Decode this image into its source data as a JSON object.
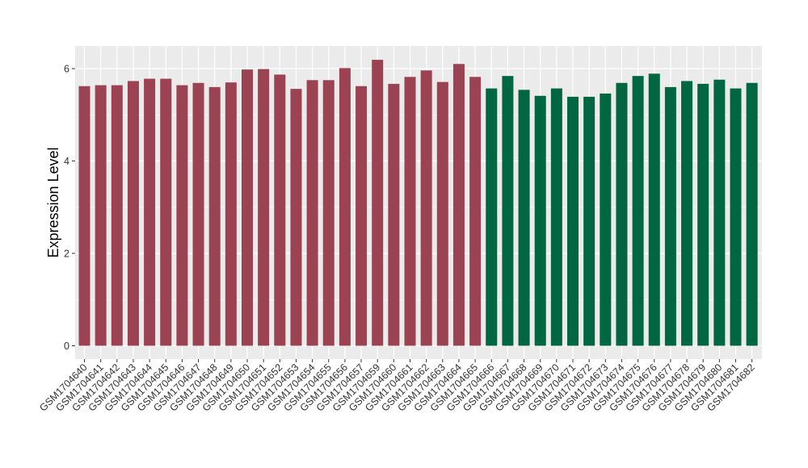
{
  "chart_data": {
    "type": "bar",
    "xlabel": "",
    "ylabel": "Expression Level",
    "ylim": [
      0,
      6.5
    ],
    "yticks": [
      0,
      2,
      4,
      6
    ],
    "grid": true,
    "background": "#ebebeb",
    "gridline_color": "#ffffff",
    "categories": [
      "GSM1704640",
      "GSM1704641",
      "GSM1704642",
      "GSM1704643",
      "GSM1704644",
      "GSM1704645",
      "GSM1704646",
      "GSM1704647",
      "GSM1704648",
      "GSM1704649",
      "GSM1704650",
      "GSM1704651",
      "GSM1704652",
      "GSM1704653",
      "GSM1704654",
      "GSM1704655",
      "GSM1704656",
      "GSM1704657",
      "GSM1704659",
      "GSM1704660",
      "GSM1704661",
      "GSM1704662",
      "GSM1704663",
      "GSM1704664",
      "GSM1704665",
      "GSM1704666",
      "GSM1704667",
      "GSM1704668",
      "GSM1704669",
      "GSM1704670",
      "GSM1704671",
      "GSM1704672",
      "GSM1704673",
      "GSM1704674",
      "GSM1704675",
      "GSM1704676",
      "GSM1704677",
      "GSM1704678",
      "GSM1704679",
      "GSM1704680",
      "GSM1704681",
      "GSM1704682"
    ],
    "values": [
      5.62,
      5.64,
      5.64,
      5.73,
      5.78,
      5.78,
      5.64,
      5.69,
      5.6,
      5.7,
      5.98,
      5.99,
      5.87,
      5.56,
      5.75,
      5.75,
      6.01,
      5.62,
      6.19,
      5.67,
      5.82,
      5.96,
      5.71,
      6.1,
      5.82,
      5.57,
      5.84,
      5.54,
      5.41,
      5.57,
      5.39,
      5.39,
      5.46,
      5.69,
      5.84,
      5.89,
      5.6,
      5.73,
      5.67,
      5.76,
      5.57,
      5.69
    ],
    "bar_colors": [
      "#9b4352",
      "#9b4352",
      "#9b4352",
      "#9b4352",
      "#9b4352",
      "#9b4352",
      "#9b4352",
      "#9b4352",
      "#9b4352",
      "#9b4352",
      "#9b4352",
      "#9b4352",
      "#9b4352",
      "#9b4352",
      "#9b4352",
      "#9b4352",
      "#9b4352",
      "#9b4352",
      "#9b4352",
      "#9b4352",
      "#9b4352",
      "#9b4352",
      "#9b4352",
      "#9b4352",
      "#9b4352",
      "#006742",
      "#006742",
      "#006742",
      "#006742",
      "#006742",
      "#006742",
      "#006742",
      "#006742",
      "#006742",
      "#006742",
      "#006742",
      "#006742",
      "#006742",
      "#006742",
      "#006742",
      "#006742",
      "#006742"
    ]
  }
}
